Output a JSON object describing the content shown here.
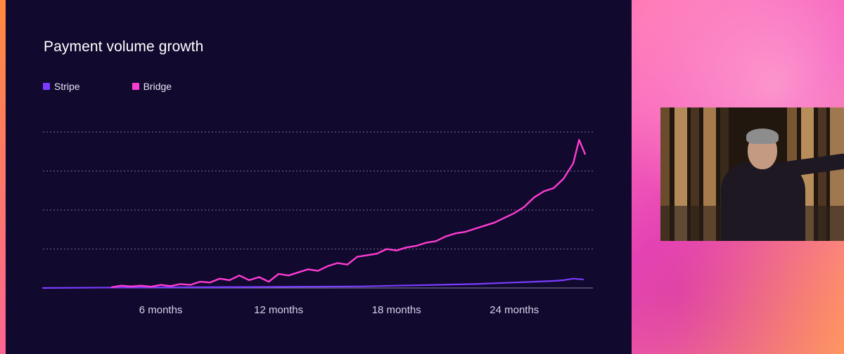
{
  "chart_data": {
    "type": "line",
    "title": "Payment volume growth",
    "xlabel": "",
    "ylabel": "",
    "x_ticks": [
      "6 months",
      "12 months",
      "18 months",
      "24 months"
    ],
    "x_tick_values": [
      6,
      12,
      18,
      24
    ],
    "xlim": [
      0,
      28
    ],
    "ylim": [
      0,
      100
    ],
    "grid": "horizontal dotted",
    "legend": "top-left",
    "series": [
      {
        "name": "Stripe",
        "color": "#7b3cff",
        "x": [
          0,
          4,
          8,
          12,
          16,
          18,
          20,
          22,
          24,
          25,
          26,
          26.5,
          27,
          27.5
        ],
        "values": [
          0,
          0.3,
          0.5,
          0.7,
          1,
          1.5,
          2,
          2.5,
          3.5,
          4,
          4.5,
          5,
          6,
          5.5
        ]
      },
      {
        "name": "Bridge",
        "color": "#ff3cd2",
        "x": [
          3.5,
          4,
          4.5,
          5,
          5.5,
          6,
          6.5,
          7,
          7.5,
          8,
          8.5,
          9,
          9.5,
          10,
          10.5,
          11,
          11.5,
          12,
          12.5,
          13,
          13.5,
          14,
          14.5,
          15,
          15.5,
          16,
          16.5,
          17,
          17.5,
          18,
          18.5,
          19,
          19.5,
          20,
          20.5,
          21,
          21.5,
          22,
          22.5,
          23,
          23.5,
          24,
          24.5,
          25,
          25.5,
          26,
          26.5,
          27,
          27.3,
          27.6
        ],
        "values": [
          0.5,
          1.5,
          1,
          1.5,
          0.8,
          2,
          1.2,
          2.5,
          2,
          4,
          3.5,
          6,
          5,
          8,
          5,
          7,
          4,
          9,
          8,
          10,
          12,
          11,
          14,
          16,
          15,
          20,
          21,
          22,
          25,
          24,
          26,
          27,
          29,
          30,
          33,
          35,
          36,
          38,
          40,
          42,
          45,
          48,
          52,
          58,
          62,
          64,
          70,
          80,
          95,
          86
        ]
      }
    ]
  },
  "colors": {
    "slide_background": "#11092e",
    "gridline": "#9c95b4",
    "axis": "#8a84a3",
    "tick_label": "#d8d3ea"
  }
}
